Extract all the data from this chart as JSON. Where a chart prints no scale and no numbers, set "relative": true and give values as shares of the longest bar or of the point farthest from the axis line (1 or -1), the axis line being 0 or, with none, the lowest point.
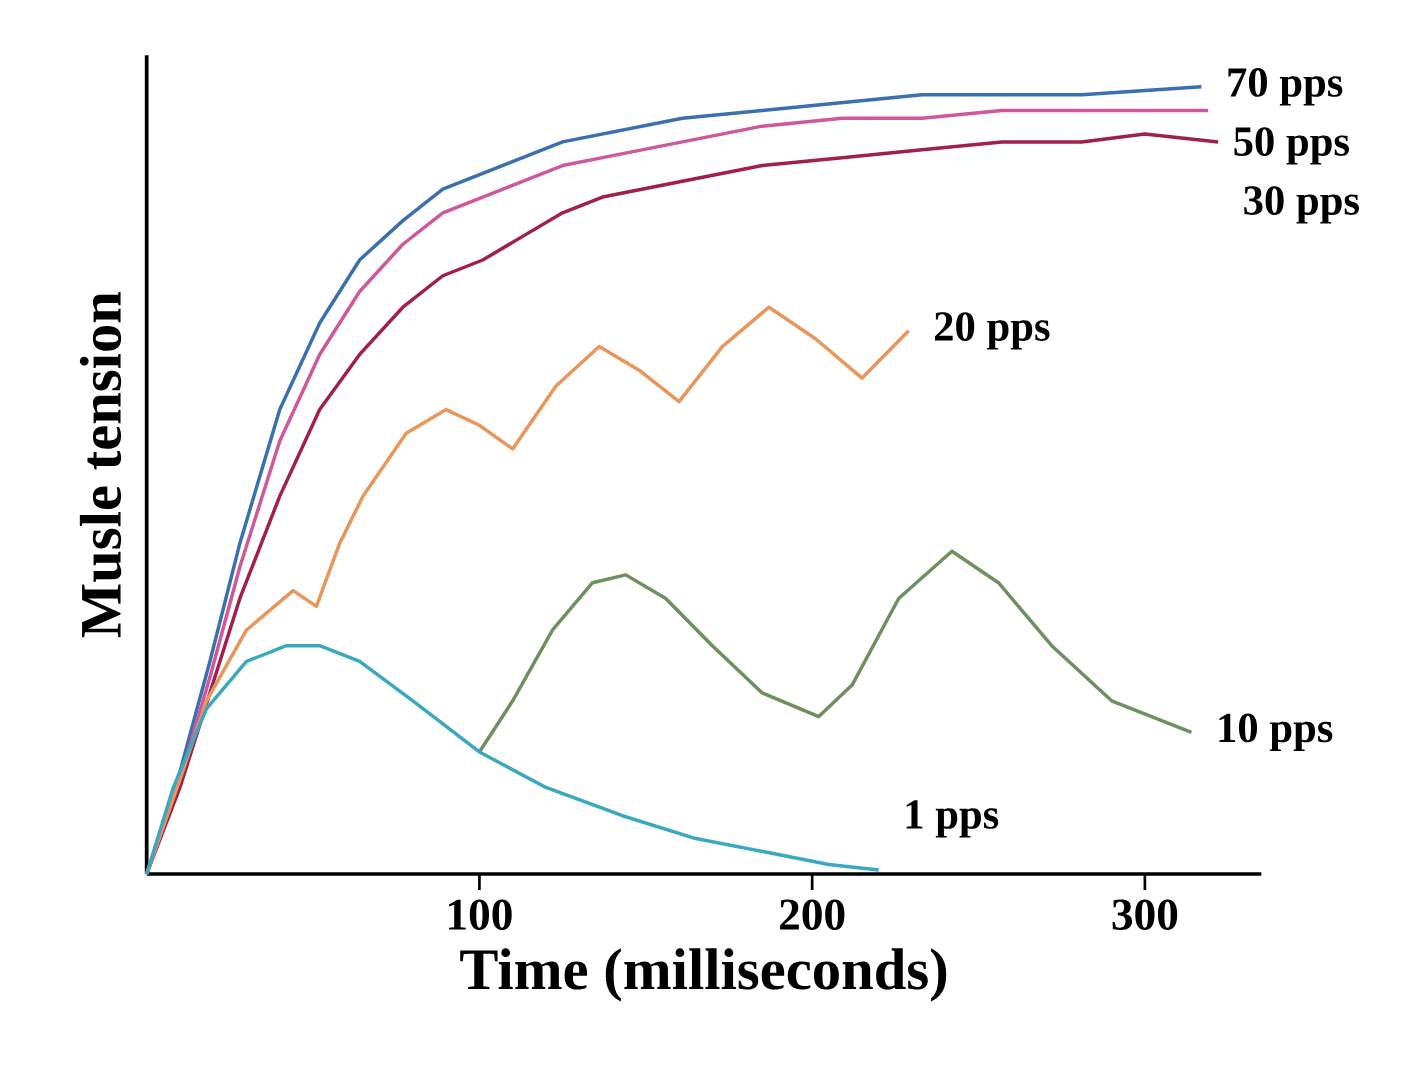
{
  "chart_data": {
    "type": "line",
    "relative": true,
    "xlabel": "Time (milliseconds)",
    "ylabel": "Musle tension",
    "xlim": [
      0,
      335
    ],
    "xticks": [
      100,
      200,
      300
    ],
    "grid": false,
    "legend": false,
    "marker": "none",
    "line_style": "solid",
    "series": [
      {
        "name": "70 pps",
        "color": "#3a6fb0",
        "x": [
          0,
          10,
          19,
          28,
          40,
          52,
          64,
          77,
          89,
          101,
          113,
          125,
          137,
          161,
          185,
          209,
          233,
          257,
          281,
          317
        ],
        "values": [
          0,
          0.13,
          0.27,
          0.42,
          0.59,
          0.7,
          0.78,
          0.83,
          0.87,
          0.89,
          0.91,
          0.93,
          0.94,
          0.96,
          0.97,
          0.98,
          0.99,
          0.99,
          0.99,
          1.0
        ]
      },
      {
        "name": "50 pps",
        "color": "#d0579a",
        "x": [
          0,
          10,
          19,
          28,
          40,
          52,
          64,
          77,
          89,
          101,
          113,
          125,
          137,
          161,
          185,
          209,
          233,
          257,
          281,
          319
        ],
        "values": [
          0,
          0.12,
          0.25,
          0.39,
          0.55,
          0.66,
          0.74,
          0.8,
          0.84,
          0.86,
          0.88,
          0.9,
          0.91,
          0.93,
          0.95,
          0.96,
          0.96,
          0.97,
          0.97,
          0.97
        ]
      },
      {
        "name": "30 pps",
        "color": "#a0204a",
        "x": [
          0,
          10,
          19,
          28,
          40,
          52,
          64,
          77,
          89,
          101,
          113,
          125,
          137,
          161,
          185,
          209,
          233,
          257,
          281,
          300,
          322
        ],
        "values": [
          0,
          0.11,
          0.23,
          0.35,
          0.48,
          0.59,
          0.66,
          0.72,
          0.76,
          0.78,
          0.81,
          0.84,
          0.86,
          0.88,
          0.9,
          0.91,
          0.92,
          0.93,
          0.93,
          0.94,
          0.93
        ]
      },
      {
        "name": "20 pps",
        "color": "#e8965a",
        "x": [
          0,
          10,
          18,
          30,
          44,
          51,
          58,
          65,
          78,
          90,
          100,
          110,
          123,
          136,
          148,
          160,
          173,
          187,
          201,
          215,
          229
        ],
        "values": [
          0,
          0.12,
          0.22,
          0.31,
          0.36,
          0.34,
          0.42,
          0.48,
          0.56,
          0.59,
          0.57,
          0.54,
          0.62,
          0.67,
          0.64,
          0.6,
          0.67,
          0.72,
          0.68,
          0.63,
          0.69
        ]
      },
      {
        "name": "10 pps",
        "color": "#6f8f5f",
        "x": [
          100,
          110,
          122,
          134,
          144,
          156,
          170,
          185,
          202,
          212,
          226,
          242,
          256,
          272,
          290,
          314
        ],
        "values": [
          0.155,
          0.22,
          0.31,
          0.37,
          0.38,
          0.35,
          0.29,
          0.23,
          0.2,
          0.24,
          0.35,
          0.41,
          0.37,
          0.29,
          0.22,
          0.18
        ]
      },
      {
        "name": "1 pps",
        "color": "#3aa8c0",
        "x": [
          0,
          8,
          18,
          30,
          42,
          52,
          64,
          80,
          100,
          120,
          143,
          165,
          186,
          205,
          220
        ],
        "values": [
          0,
          0.11,
          0.21,
          0.27,
          0.29,
          0.29,
          0.27,
          0.22,
          0.155,
          0.11,
          0.074,
          0.045,
          0.028,
          0.012,
          0.005
        ]
      }
    ]
  }
}
